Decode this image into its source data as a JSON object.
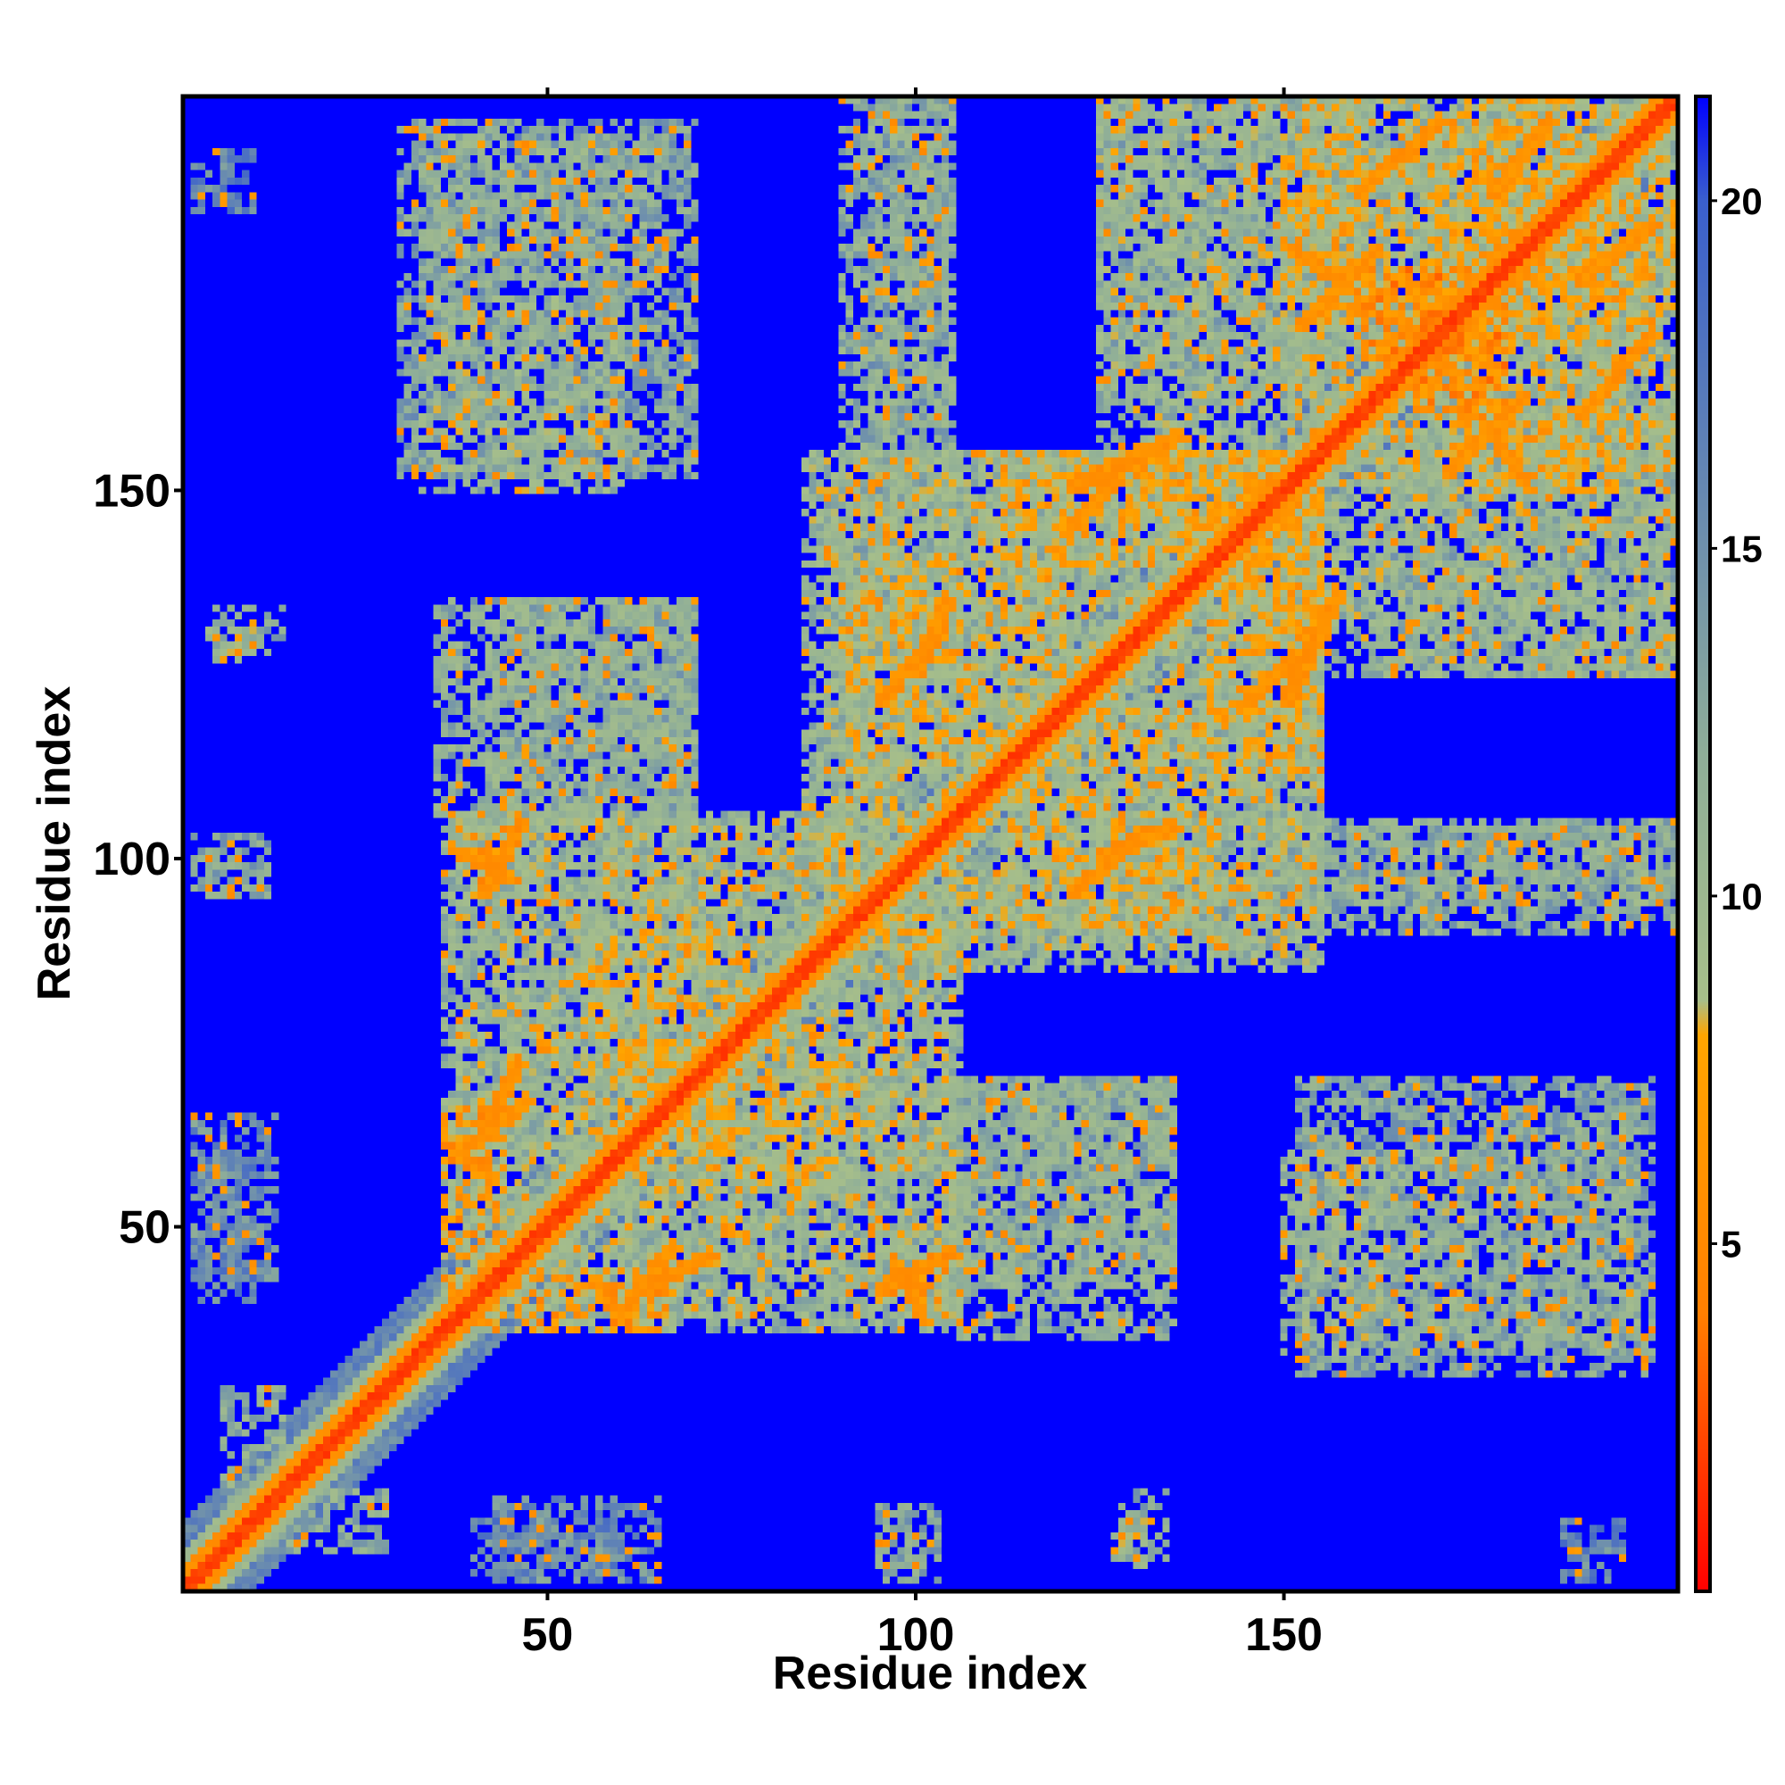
{
  "chart_data": {
    "type": "heatmap",
    "title": "",
    "xlabel": "Residue index",
    "ylabel": "Residue index",
    "n_residues": 203,
    "xlim": [
      1,
      203
    ],
    "ylim": [
      1,
      203
    ],
    "x_ticks": [
      50,
      100,
      150
    ],
    "x_tick_labels": [
      "50",
      "100",
      "150"
    ],
    "y_ticks": [
      50,
      100,
      150
    ],
    "y_tick_labels": [
      "50",
      "100",
      "150"
    ],
    "colorbar": {
      "range": [
        0,
        21.5
      ],
      "ticks": [
        5,
        10,
        15,
        20
      ],
      "tick_labels": [
        "5",
        "10",
        "15",
        "20"
      ],
      "colors": [
        "#ff0000",
        "#ff7f00",
        "#ffa500",
        "#a7bf8a",
        "#8fae98",
        "#3a5fcd",
        "#0000ff"
      ],
      "stops": [
        0,
        4.0,
        8.0,
        8.5,
        12.0,
        20.0,
        21.5
      ]
    },
    "background_value": 21.5,
    "diagonal_band": {
      "core_value": 1.5,
      "inner_value": 5.0,
      "mid_value": 9.0,
      "outer_value": 14.0
    },
    "contact_blocks": [
      {
        "x": [
          6,
          14
        ],
        "y": [
          8,
          28
        ],
        "value": 12
      },
      {
        "x": [
          40,
          60
        ],
        "y": [
          3,
          10
        ],
        "value": 16
      },
      {
        "x": [
          95,
          101
        ],
        "y": [
          3,
          12
        ],
        "value": 13
      },
      {
        "x": [
          127,
          131
        ],
        "y": [
          4,
          10
        ],
        "value": 9
      },
      {
        "x": [
          2,
          13
        ],
        "y": [
          43,
          65
        ],
        "value": 15
      },
      {
        "x": [
          36,
          105
        ],
        "y": [
          38,
          106
        ],
        "value": 11
      },
      {
        "x": [
          43,
          67
        ],
        "y": [
          36,
          43
        ],
        "value": 7
      },
      {
        "x": [
          95,
          104
        ],
        "y": [
          40,
          46
        ],
        "value": 7
      },
      {
        "x": [
          60,
          90
        ],
        "y": [
          55,
          75
        ],
        "value": 10
      },
      {
        "x": [
          104,
          135
        ],
        "y": [
          42,
          70
        ],
        "value": 12
      },
      {
        "x": [
          150,
          176
        ],
        "y": [
          33,
          60
        ],
        "value": 11
      },
      {
        "x": [
          178,
          198
        ],
        "y": [
          33,
          65
        ],
        "value": 12
      },
      {
        "x": [
          85,
          155
        ],
        "y": [
          88,
          155
        ],
        "value": 11
      },
      {
        "x": [
          140,
          155
        ],
        "y": [
          112,
          155
        ],
        "value": 9
      },
      {
        "x": [
          112,
          140
        ],
        "y": [
          90,
          120
        ],
        "value": 10
      },
      {
        "x": [
          2,
          12
        ],
        "y": [
          96,
          103
        ],
        "value": 13
      },
      {
        "x": [
          155,
          203
        ],
        "y": [
          94,
          104
        ],
        "value": 13
      },
      {
        "x": [
          35,
          70
        ],
        "y": [
          105,
          135
        ],
        "value": 12
      },
      {
        "x": [
          5,
          14
        ],
        "y": [
          128,
          134
        ],
        "value": 12
      },
      {
        "x": [
          90,
          105
        ],
        "y": [
          130,
          203
        ],
        "value": 12
      },
      {
        "x": [
          30,
          70
        ],
        "y": [
          152,
          200
        ],
        "value": 13
      },
      {
        "x": [
          125,
          203
        ],
        "y": [
          150,
          203
        ],
        "value": 11
      },
      {
        "x": [
          162,
          203
        ],
        "y": [
          125,
          160
        ],
        "value": 12
      },
      {
        "x": [
          173,
          195
        ],
        "y": [
          150,
          203
        ],
        "value": 9
      },
      {
        "x": [
          168,
          180
        ],
        "y": [
          160,
          175
        ],
        "value": 6
      },
      {
        "x": [
          2,
          10
        ],
        "y": [
          188,
          196
        ],
        "value": 16
      }
    ],
    "ridges": [
      {
        "from": [
          37,
          101
        ],
        "to": [
          44,
          97
        ],
        "value": 6
      },
      {
        "from": [
          37,
          59
        ],
        "to": [
          47,
          67
        ],
        "value": 6
      },
      {
        "from": [
          63,
          41
        ],
        "to": [
          72,
          46
        ],
        "value": 6
      },
      {
        "from": [
          95,
          41
        ],
        "to": [
          105,
          46
        ],
        "value": 6
      },
      {
        "from": [
          95,
          121
        ],
        "to": [
          103,
          131
        ],
        "value": 6
      },
      {
        "from": [
          121,
          150
        ],
        "to": [
          136,
          157
        ],
        "value": 6
      },
      {
        "from": [
          145,
          121
        ],
        "to": [
          155,
          130
        ],
        "value": 6
      },
      {
        "from": [
          125,
          100
        ],
        "to": [
          135,
          104
        ],
        "value": 6
      },
      {
        "from": [
          150,
          183
        ],
        "to": [
          158,
          178
        ],
        "value": 6
      },
      {
        "from": [
          172,
          152
        ],
        "to": [
          182,
          162
        ],
        "value": 6
      },
      {
        "from": [
          160,
          190
        ],
        "to": [
          171,
          200
        ],
        "value": 6
      },
      {
        "from": [
          190,
          178
        ],
        "to": [
          200,
          186
        ],
        "value": 6
      }
    ]
  }
}
